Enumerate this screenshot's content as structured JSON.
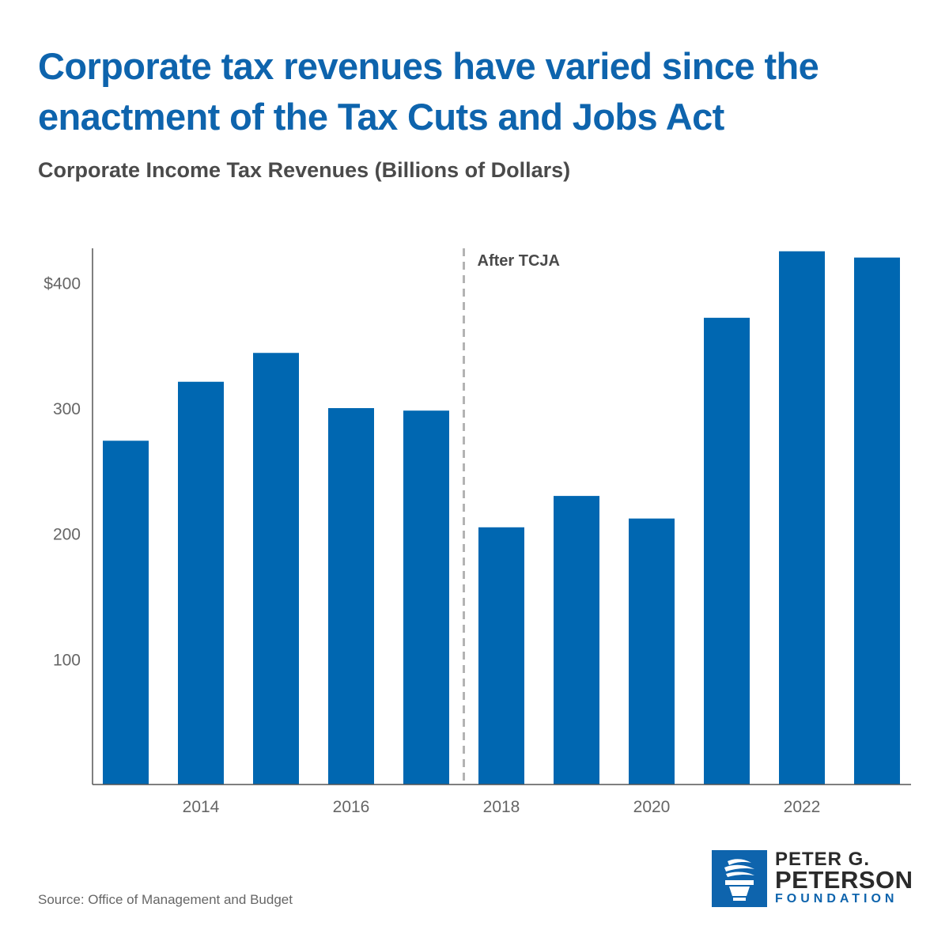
{
  "title_lines": [
    "Corporate tax revenues have varied since the",
    "enactment of the Tax Cuts and Jobs Act"
  ],
  "subtitle": "Corporate Income Tax Revenues (Billions of Dollars)",
  "source": "Source: Office of Management and Budget",
  "logo": {
    "line1": "PETER G.",
    "line2": "PETERSON",
    "line3": "FOUNDATION"
  },
  "colors": {
    "bar": "#0067b1",
    "title": "#0e64ad",
    "axis": "#555555",
    "divider": "#b3b3b3"
  },
  "chart_data": {
    "type": "bar",
    "title": "Corporate Income Tax Revenues (Billions of Dollars)",
    "categories": [
      "2013",
      "2014",
      "2015",
      "2016",
      "2017",
      "2018",
      "2019",
      "2020",
      "2021",
      "2022",
      "2023"
    ],
    "values": [
      274,
      321,
      344,
      300,
      298,
      205,
      230,
      212,
      372,
      425,
      420
    ],
    "x_tick_labels": [
      "2014",
      "2016",
      "2018",
      "2020",
      "2022"
    ],
    "y_ticks": [
      100,
      200,
      300,
      400
    ],
    "y_tick_labels": [
      "100",
      "200",
      "300",
      "$400"
    ],
    "ylim": [
      0,
      428
    ],
    "grid": false,
    "annotation": {
      "label": "After TCJA",
      "between": [
        "2017",
        "2018"
      ]
    }
  }
}
